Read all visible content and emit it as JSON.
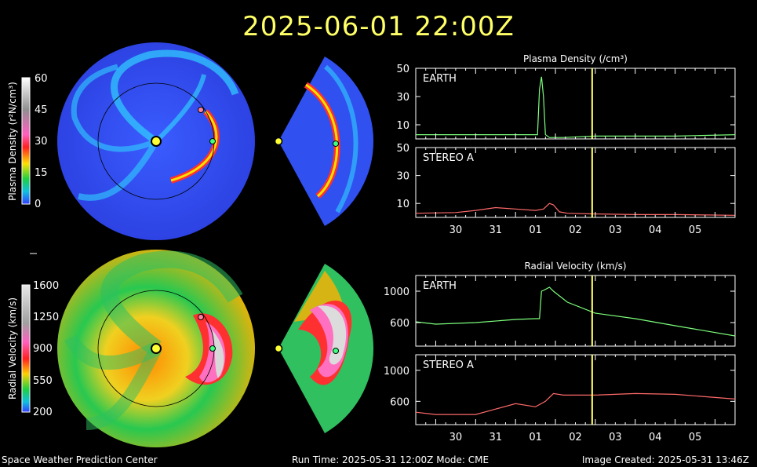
{
  "header": {
    "timestamp": "2025-06-01  22:00Z"
  },
  "footer": {
    "org": "Space Weather Prediction Center",
    "run": "Run Time: 2025-05-31 12:00Z  Mode: CME",
    "created": "Image Created: 2025-05-31 13:46Z"
  },
  "colorbars": {
    "density": {
      "label": "Plasma Density (r²N/cm³)",
      "ticks": [
        "60",
        "45",
        "30",
        "15",
        "0"
      ]
    },
    "velocity": {
      "label": "Radial Velocity (km/s)",
      "ticks": [
        "1600",
        "1250",
        "900",
        "550",
        "200"
      ]
    }
  },
  "colors": {
    "earth": "#7cff7c",
    "stereo": "#ff6a6a",
    "cursor": "#ffff66",
    "sun": "#ffff33"
  },
  "chart_data": [
    {
      "type": "line",
      "title": "Plasma Density (/cm³)",
      "xlabel": "",
      "ylabel": "",
      "x_ticks": [
        "30",
        "31",
        "01",
        "02",
        "03",
        "04",
        "05"
      ],
      "x_range_days": [
        -1.5,
        6.5
      ],
      "cursor_day": 2.92,
      "panels": [
        {
          "label": "EARTH",
          "ylim": [
            0,
            50
          ],
          "y_ticks": [
            10,
            30,
            50
          ],
          "color": "#7cff7c",
          "x": [
            -1.5,
            -0.5,
            0.5,
            1.3,
            1.55,
            1.6,
            1.65,
            1.7,
            1.75,
            1.85,
            2.2,
            3,
            4,
            5,
            6.5
          ],
          "y": [
            3,
            3,
            3,
            3,
            3,
            35,
            44,
            30,
            3,
            1,
            1,
            2,
            2,
            2,
            3
          ]
        },
        {
          "label": "STEREO A",
          "ylim": [
            0,
            50
          ],
          "y_ticks": [
            10,
            30,
            50
          ],
          "color": "#ff6a6a",
          "x": [
            -1.5,
            -0.5,
            0,
            0.5,
            1,
            1.5,
            1.7,
            1.85,
            1.95,
            2.1,
            2.3,
            3,
            4,
            5,
            6.5
          ],
          "y": [
            3,
            3.5,
            5,
            7,
            6,
            5,
            6,
            10,
            9,
            4,
            3,
            2.5,
            2,
            2,
            1.5
          ]
        }
      ]
    },
    {
      "type": "line",
      "title": "Radial Velocity (km/s)",
      "xlabel": "",
      "ylabel": "",
      "x_ticks": [
        "30",
        "31",
        "01",
        "02",
        "03",
        "04",
        "05"
      ],
      "x_range_days": [
        -1.5,
        6.5
      ],
      "cursor_day": 2.92,
      "panels": [
        {
          "label": "EARTH",
          "ylim": [
            300,
            1200
          ],
          "y_ticks": [
            600,
            1000
          ],
          "color": "#7cff7c",
          "x": [
            -1.5,
            -1,
            0,
            1,
            1.5,
            1.6,
            1.65,
            1.7,
            1.85,
            1.95,
            2.3,
            3,
            4,
            5,
            6.5
          ],
          "y": [
            610,
            580,
            600,
            640,
            650,
            650,
            1000,
            1010,
            1050,
            1000,
            860,
            720,
            650,
            560,
            430
          ]
        },
        {
          "label": "STEREO A",
          "ylim": [
            300,
            1200
          ],
          "y_ticks": [
            600,
            1000
          ],
          "color": "#ff6a6a",
          "x": [
            -1.5,
            -1,
            0,
            0.5,
            1,
            1.5,
            1.75,
            1.95,
            2.2,
            3,
            4,
            5,
            6.5
          ],
          "y": [
            460,
            430,
            430,
            500,
            570,
            530,
            600,
            700,
            680,
            680,
            700,
            690,
            630
          ]
        }
      ]
    }
  ]
}
